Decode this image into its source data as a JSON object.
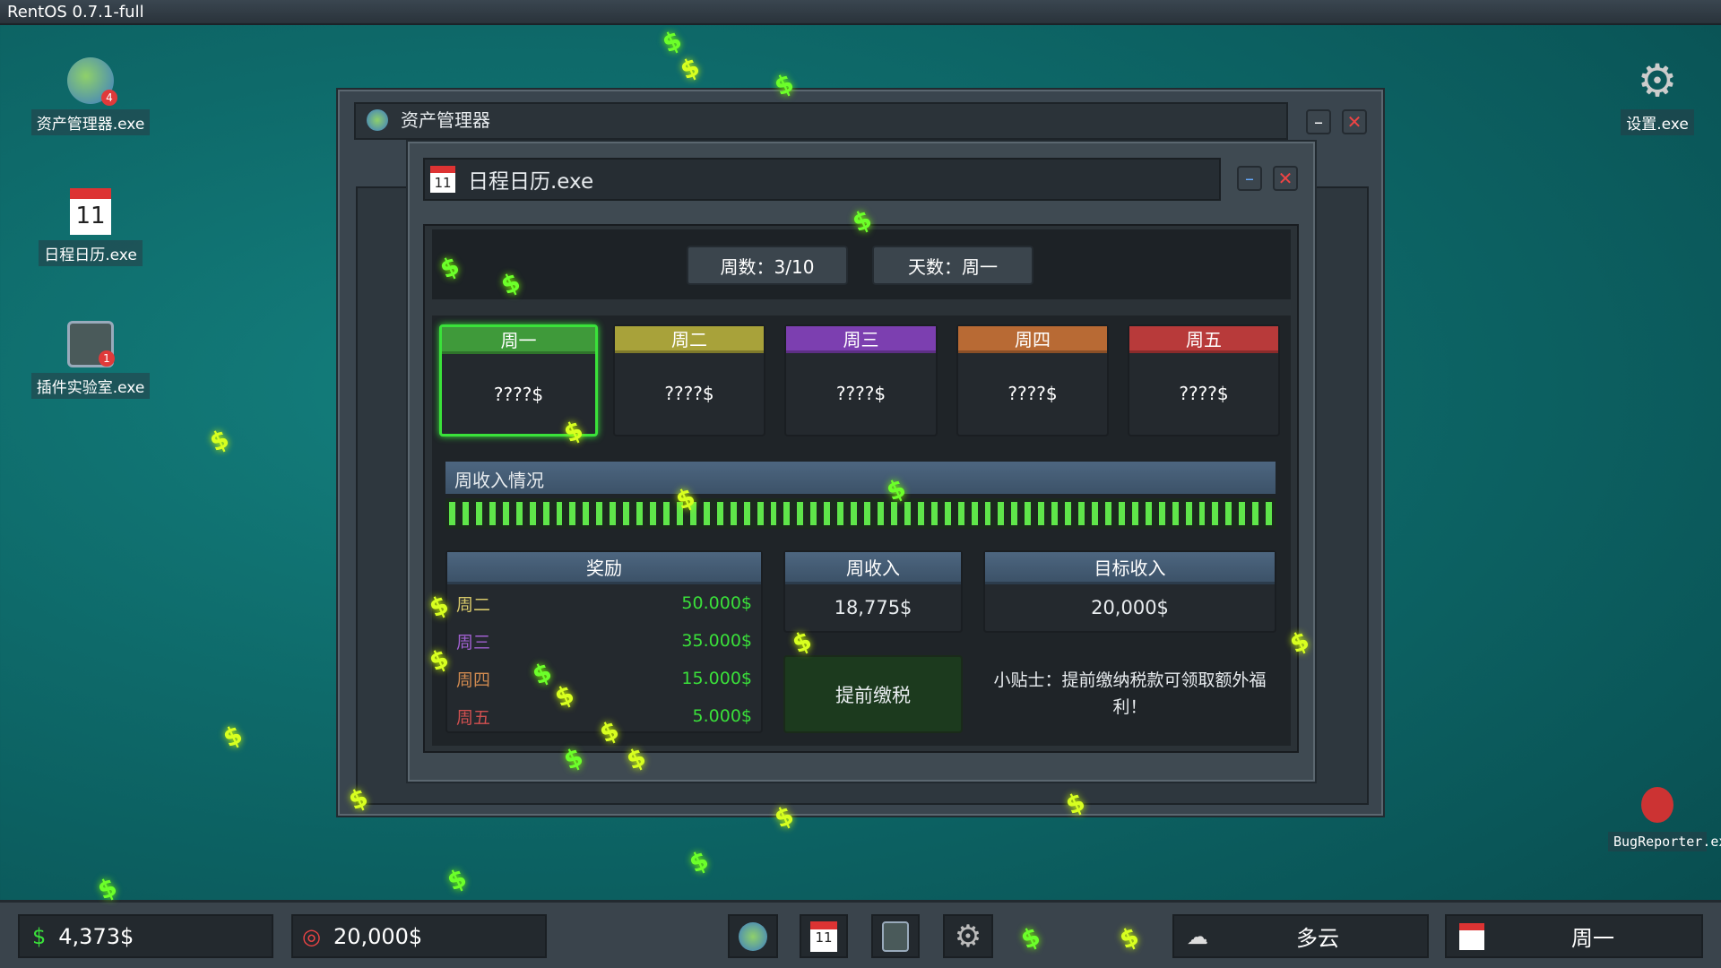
{
  "os_title": "RentOS 0.7.1-full",
  "desktop_left": [
    {
      "label": "资产管理器.exe",
      "icon": "globe-icon",
      "badge": "4"
    },
    {
      "label": "日程日历.exe",
      "icon": "calendar-icon",
      "badge": null
    },
    {
      "label": "插件实验室.exe",
      "icon": "plugin-lab-icon",
      "badge": "1"
    }
  ],
  "desktop_right": [
    {
      "label": "设置.exe",
      "icon": "gear-icon"
    },
    {
      "label": "BugReporter.exe",
      "icon": "ladybug-icon"
    }
  ],
  "bg_window": {
    "title": "资产管理器"
  },
  "calendar_window": {
    "title": "日程日历.exe",
    "week_count": "周数：3/10",
    "day_label": "天数：周一",
    "days": [
      {
        "name": "周一",
        "value": "????$",
        "color": "#3f9a3a",
        "selected": true
      },
      {
        "name": "周二",
        "value": "????$",
        "color": "#a8a23a",
        "selected": false
      },
      {
        "name": "周三",
        "value": "????$",
        "color": "#7c3fb0",
        "selected": false
      },
      {
        "name": "周四",
        "value": "????$",
        "color": "#b86a34",
        "selected": false
      },
      {
        "name": "周五",
        "value": "????$",
        "color": "#b83a3a",
        "selected": false
      }
    ],
    "income_title": "周收入情况",
    "income_progress_percent": 100,
    "rewards": {
      "header": "奖励",
      "rows": [
        {
          "day": "周二",
          "amount": "50.000$",
          "color": "#d8c96a"
        },
        {
          "day": "周三",
          "amount": "35.000$",
          "color": "#a060d0"
        },
        {
          "day": "周四",
          "amount": "15.000$",
          "color": "#d08a50"
        },
        {
          "day": "周五",
          "amount": "5.000$",
          "color": "#d05050"
        }
      ]
    },
    "weekly_income": {
      "header": "周收入",
      "value": "18,775$"
    },
    "target_income": {
      "header": "目标收入",
      "value": "20,000$"
    },
    "pay_tax_button": "提前缴税",
    "tip": "小贴士：提前缴纳税款可领取额外福利！"
  },
  "taskbar": {
    "money": "4,373$",
    "target": "20,000$",
    "weather": "多云",
    "day": "周一",
    "apps": [
      "globe-icon",
      "calendar-icon",
      "plugin-lab-icon",
      "gear-icon"
    ]
  },
  "colors": {
    "money_green": "#3adf3a",
    "accent_green": "#39e23a"
  }
}
